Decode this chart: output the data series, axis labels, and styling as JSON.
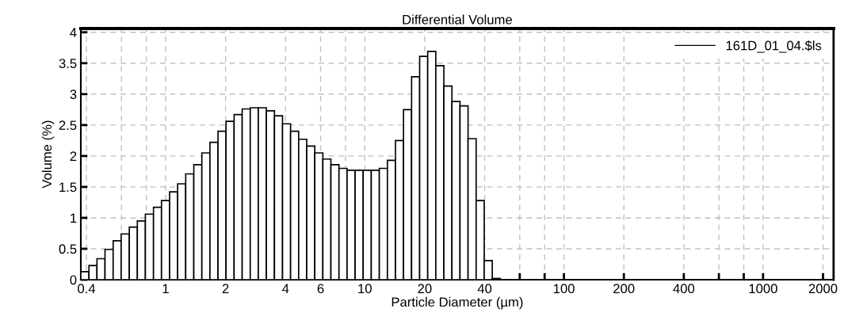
{
  "chart_data": {
    "type": "histogram",
    "title": "Differential Volume",
    "xlabel": "Particle Diameter (µm)",
    "ylabel": "Volume (%)",
    "log": "x",
    "grid": true,
    "legend": "top right",
    "xlim": [
      0.375,
      2260
    ],
    "ylim": [
      0,
      4.06
    ],
    "xticks": [
      0.4,
      {
        "value": 0.6,
        "label": null
      },
      {
        "value": 0.8,
        "label": null
      },
      1,
      2,
      4,
      6,
      {
        "value": 8,
        "label": null
      },
      10,
      20,
      40,
      {
        "value": 60,
        "label": null
      },
      {
        "value": 80,
        "label": null
      },
      100,
      200,
      400,
      {
        "value": 600,
        "label": null
      },
      {
        "value": 800,
        "label": null
      },
      1000,
      2000
    ],
    "yticks": [
      0,
      0.5,
      1,
      1.5,
      2,
      2.5,
      3,
      3.5,
      4
    ],
    "bins": [
      0.375,
      0.412,
      0.452,
      0.496,
      0.545,
      0.598,
      0.657,
      0.721,
      0.791,
      0.869,
      0.953,
      1.047,
      1.149,
      1.261,
      1.385,
      1.52,
      1.669,
      1.832,
      2.01,
      2.207,
      2.423,
      2.66,
      2.92,
      3.205,
      3.519,
      3.863,
      4.24,
      4.655,
      5.11,
      5.61,
      6.158,
      6.76,
      7.421,
      8.147,
      8.943,
      9.818,
      10.78,
      11.83,
      12.99,
      14.26,
      15.65,
      17.18,
      18.86,
      20.7,
      22.73,
      24.95,
      27.39,
      30.07,
      33.01,
      36.24,
      39.78,
      43.67,
      47.94,
      52.62,
      57.77,
      63.42,
      69.62,
      76.43,
      83.9,
      92.1,
      101.1,
      111.0,
      121.8,
      133.7,
      146.8,
      161.2,
      176.9,
      194.2,
      213.2,
      234.1,
      256.9,
      282.1,
      309.6,
      339.9,
      373.1,
      409.6,
      449.7,
      493.6,
      541.9,
      594.9,
      653.0,
      716.9,
      787.0,
      863.9,
      948.4,
      1041,
      1143,
      1255,
      1377,
      1512,
      1660,
      1822,
      2000
    ],
    "series": [
      {
        "name": "161D_01_04.$ls",
        "color": "#000000",
        "values": [
          0.13,
          0.23,
          0.34,
          0.49,
          0.63,
          0.74,
          0.85,
          0.95,
          1.06,
          1.17,
          1.28,
          1.42,
          1.55,
          1.71,
          1.86,
          2.05,
          2.22,
          2.4,
          2.56,
          2.67,
          2.76,
          2.78,
          2.78,
          2.73,
          2.65,
          2.52,
          2.4,
          2.27,
          2.16,
          2.05,
          1.95,
          1.86,
          1.8,
          1.77,
          1.77,
          1.77,
          1.77,
          1.8,
          1.93,
          2.25,
          2.75,
          3.28,
          3.61,
          3.69,
          3.46,
          3.13,
          2.88,
          2.81,
          2.28,
          1.28,
          0.31,
          0.02,
          0,
          0,
          0,
          0,
          0,
          0,
          0,
          0,
          0,
          0,
          0,
          0,
          0,
          0,
          0,
          0,
          0,
          0,
          0,
          0,
          0,
          0,
          0,
          0,
          0,
          0,
          0,
          0,
          0,
          0,
          0,
          0,
          0,
          0,
          0,
          0,
          0,
          0,
          0,
          0
        ]
      }
    ]
  }
}
